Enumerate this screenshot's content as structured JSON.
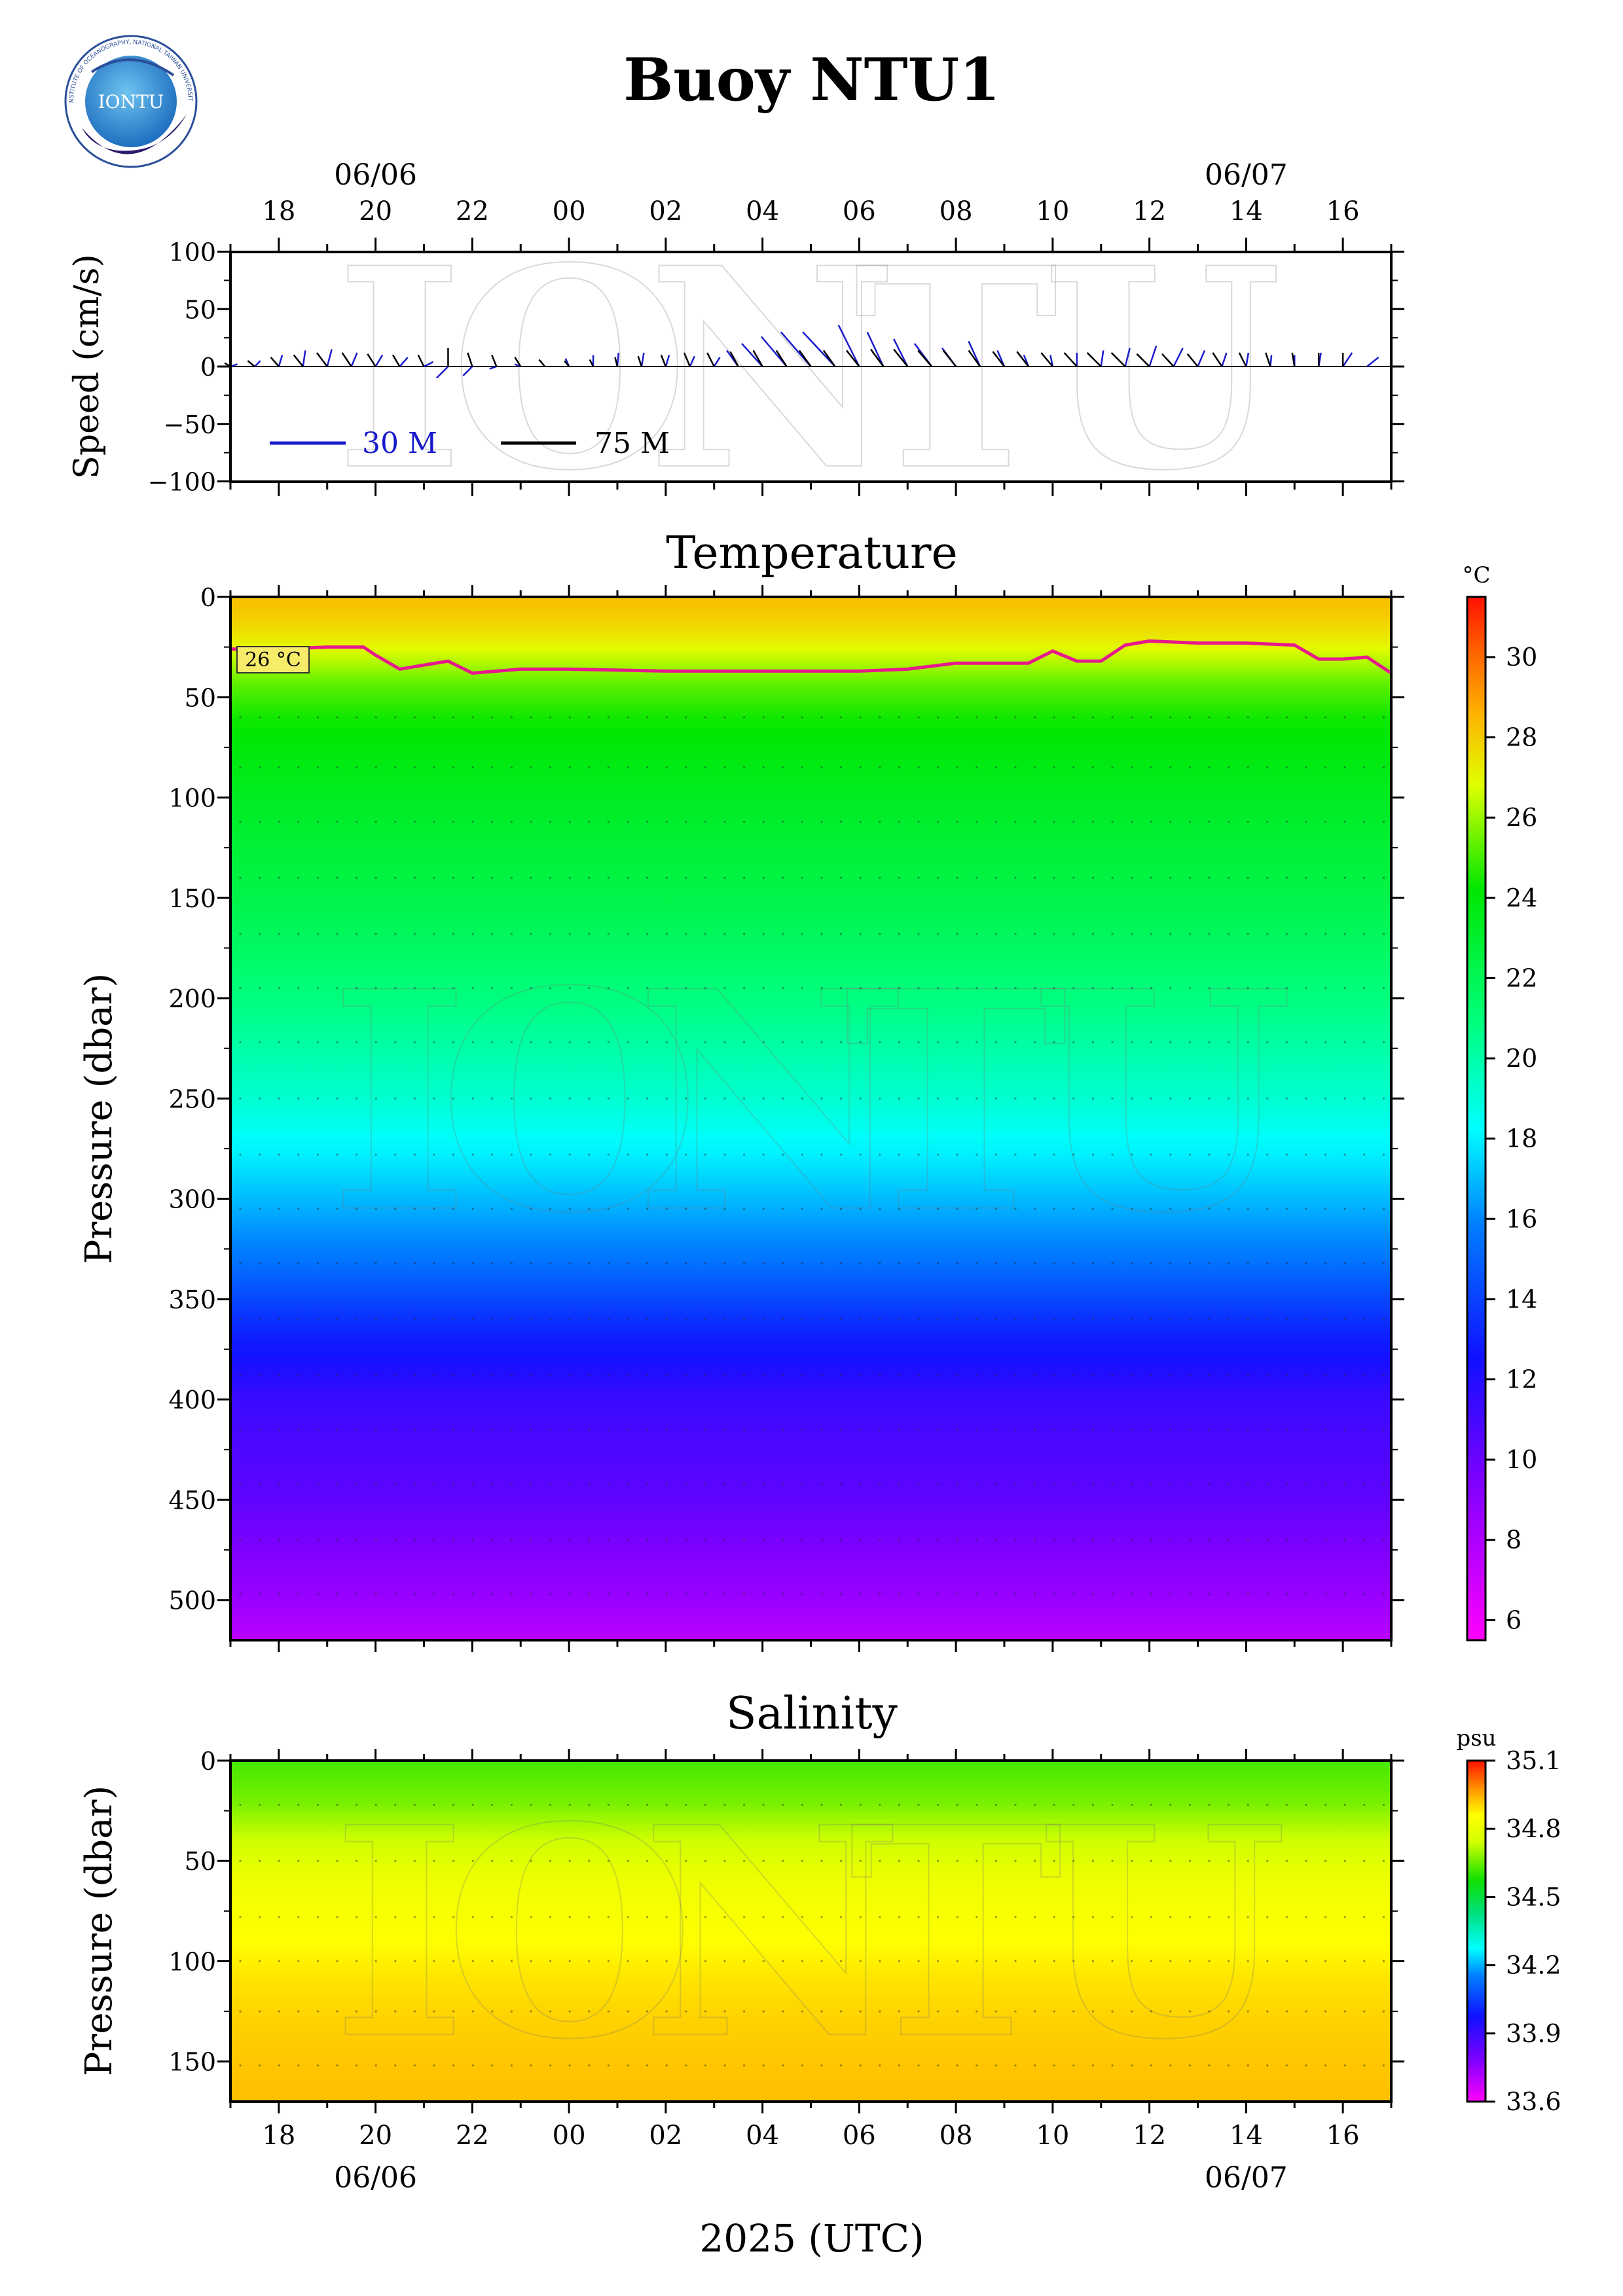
{
  "title": "Buoy NTU1",
  "logo_text": "IONTU",
  "logo_ring_text": "INSTITUTE OF OCEANOGRAPHY, NATIONAL TAIWAN UNIVERSITY",
  "watermark": "IONTU",
  "xlabel": "2025 (UTC)",
  "time_axis": {
    "hour_ticks": [
      "18",
      "20",
      "22",
      "00",
      "02",
      "04",
      "06",
      "08",
      "10",
      "12",
      "14",
      "16"
    ],
    "date_labels": [
      "06/06",
      "06/07"
    ]
  },
  "colors": {
    "series_30m": "#1a1acc",
    "series_75m": "#000000",
    "isotherm": "#e6198c"
  },
  "chart_data": [
    {
      "type": "line",
      "title": "",
      "ylabel": "Speed (cm/s)",
      "ylim": [
        -100,
        100
      ],
      "yticks": [
        "100",
        "50",
        "0",
        "−50",
        "−100"
      ],
      "legend": {
        "placement": "bottom-left",
        "entries": [
          "30 M",
          "75 M"
        ]
      },
      "series": [
        {
          "name": "30 M",
          "color": "#1a1acc",
          "x": [
            "06/06 17:00",
            "06/06 17:30",
            "06/06 18:00",
            "06/06 18:30",
            "06/06 19:00",
            "06/06 19:30",
            "06/06 20:00",
            "06/06 20:30",
            "06/06 21:00",
            "06/06 21:30",
            "06/06 22:00",
            "06/06 22:30",
            "06/06 23:00",
            "06/06 23:30",
            "06/07 00:00",
            "06/07 00:30",
            "06/07 01:00",
            "06/07 01:30",
            "06/07 02:00",
            "06/07 02:30",
            "06/07 03:00",
            "06/07 03:30",
            "06/07 04:00",
            "06/07 04:30",
            "06/07 05:00",
            "06/07 05:30",
            "06/07 06:00",
            "06/07 06:30",
            "06/07 07:00",
            "06/07 07:30",
            "06/07 08:00",
            "06/07 08:30",
            "06/07 09:00",
            "06/07 09:30",
            "06/07 10:00",
            "06/07 10:30",
            "06/07 11:00",
            "06/07 11:30",
            "06/07 12:00",
            "06/07 12:30",
            "06/07 13:00",
            "06/07 13:30",
            "06/07 14:00",
            "06/07 14:30",
            "06/07 15:00",
            "06/07 15:30",
            "06/07 16:00",
            "06/07 16:30"
          ],
          "u": [
            6,
            5,
            3,
            2,
            4,
            5,
            6,
            7,
            8,
            -10,
            -8,
            -6,
            -5,
            -4,
            -3,
            0,
            1,
            2,
            3,
            4,
            5,
            -10,
            -18,
            -22,
            -26,
            -28,
            -18,
            -14,
            -12,
            -15,
            -12,
            -10,
            -6,
            -4,
            -2,
            0,
            2,
            4,
            6,
            8,
            6,
            4,
            2,
            1,
            0,
            2,
            8,
            10
          ],
          "v": [
            2,
            5,
            10,
            14,
            15,
            12,
            10,
            8,
            4,
            -10,
            -8,
            -2,
            2,
            5,
            7,
            10,
            12,
            12,
            10,
            9,
            8,
            14,
            20,
            26,
            30,
            30,
            36,
            30,
            24,
            20,
            16,
            22,
            14,
            10,
            10,
            12,
            14,
            16,
            18,
            16,
            14,
            12,
            12,
            10,
            10,
            12,
            12,
            8
          ]
        },
        {
          "name": "75 M",
          "color": "#000000",
          "x": [
            "06/06 17:00",
            "06/06 17:30",
            "06/06 18:00",
            "06/06 18:30",
            "06/06 19:00",
            "06/06 19:30",
            "06/06 20:00",
            "06/06 20:30",
            "06/06 21:00",
            "06/06 21:30",
            "06/06 22:00",
            "06/06 22:30",
            "06/06 23:00",
            "06/06 23:30",
            "06/07 00:00",
            "06/07 00:30",
            "06/07 01:00",
            "06/07 01:30",
            "06/07 02:00",
            "06/07 02:30",
            "06/07 03:00",
            "06/07 03:30",
            "06/07 04:00",
            "06/07 04:30",
            "06/07 05:00",
            "06/07 05:30",
            "06/07 06:00",
            "06/07 06:30",
            "06/07 07:00",
            "06/07 07:30",
            "06/07 08:00",
            "06/07 08:30",
            "06/07 09:00",
            "06/07 09:30",
            "06/07 10:00",
            "06/07 10:30",
            "06/07 11:00",
            "06/07 11:30",
            "06/07 12:00",
            "06/07 12:30",
            "06/07 13:00",
            "06/07 13:30",
            "06/07 14:00",
            "06/07 14:30",
            "06/07 15:00",
            "06/07 15:30",
            "06/07 16:00",
            "06/07 16:30"
          ],
          "u": [
            -5,
            -6,
            -7,
            -8,
            -9,
            -8,
            -7,
            -6,
            -5,
            0,
            -4,
            -4,
            -5,
            -5,
            -4,
            -3,
            -2,
            -3,
            -4,
            -5,
            -6,
            -7,
            -8,
            -9,
            -10,
            -10,
            -11,
            -11,
            -12,
            -12,
            -11,
            -10,
            -10,
            -10,
            -10,
            -11,
            -12,
            -12,
            -11,
            -10,
            -9,
            -8,
            -6,
            -4,
            -2,
            0,
            0,
            0
          ],
          "v": [
            3,
            5,
            8,
            10,
            12,
            12,
            11,
            10,
            10,
            16,
            12,
            10,
            8,
            6,
            5,
            6,
            8,
            9,
            10,
            12,
            12,
            13,
            14,
            14,
            14,
            14,
            14,
            15,
            15,
            14,
            14,
            14,
            13,
            13,
            12,
            12,
            12,
            12,
            11,
            11,
            11,
            12,
            12,
            12,
            12,
            12,
            12,
            0
          ]
        }
      ]
    },
    {
      "type": "heatmap",
      "title": "Temperature",
      "ylabel": "Pressure (dbar)",
      "ylim": [
        0,
        520
      ],
      "yticks": [
        "0",
        "50",
        "100",
        "150",
        "200",
        "250",
        "300",
        "350",
        "400",
        "450",
        "500"
      ],
      "colorbar": {
        "unit": "°C",
        "range": [
          5.5,
          31.5
        ],
        "ticks": [
          "30",
          "28",
          "26",
          "24",
          "22",
          "20",
          "18",
          "16",
          "14",
          "12",
          "10",
          "8",
          "6"
        ]
      },
      "profile": {
        "depth": [
          0,
          10,
          20,
          30,
          40,
          60,
          100,
          150,
          200,
          250,
          300,
          330,
          360,
          400,
          450,
          500,
          520
        ],
        "temperature": [
          28.3,
          28.0,
          27.4,
          26.6,
          25.5,
          24.4,
          23.3,
          22.3,
          20.9,
          19.2,
          17.0,
          15.6,
          13.5,
          11.3,
          10.3,
          8.6,
          7.6
        ]
      },
      "isotherm": {
        "label": "26 °C",
        "color": "#e6198c",
        "x": [
          "06/06 17:00",
          "06/06 18:00",
          "06/06 19:00",
          "06/06 19:45",
          "06/06 20:00",
          "06/06 20:30",
          "06/06 21:00",
          "06/06 21:30",
          "06/06 22:00",
          "06/06 23:00",
          "06/07 00:00",
          "06/07 02:00",
          "06/07 04:00",
          "06/07 06:00",
          "06/07 07:00",
          "06/07 08:00",
          "06/07 09:00",
          "06/07 09:30",
          "06/07 10:00",
          "06/07 10:30",
          "06/07 11:00",
          "06/07 11:30",
          "06/07 12:00",
          "06/07 13:00",
          "06/07 14:00",
          "06/07 15:00",
          "06/07 15:30",
          "06/07 16:00",
          "06/07 16:30",
          "06/07 17:00"
        ],
        "pressure": [
          26,
          26,
          25,
          25,
          29,
          36,
          34,
          32,
          38,
          36,
          36,
          37,
          37,
          37,
          36,
          33,
          33,
          33,
          27,
          32,
          32,
          24,
          22,
          23,
          23,
          24,
          31,
          31,
          30,
          38
        ]
      }
    },
    {
      "type": "heatmap",
      "title": "Salinity",
      "ylabel": "Pressure (dbar)",
      "ylim": [
        0,
        170
      ],
      "yticks": [
        "0",
        "50",
        "100",
        "150"
      ],
      "colorbar": {
        "unit": "psu",
        "range": [
          33.6,
          35.1
        ],
        "ticks": [
          "35.1",
          "34.8",
          "34.5",
          "34.2",
          "33.9",
          "33.6"
        ]
      },
      "profile": {
        "depth": [
          0,
          20,
          40,
          60,
          90,
          110,
          130,
          170
        ],
        "salinity": [
          34.62,
          34.66,
          34.74,
          34.82,
          34.86,
          34.89,
          34.91,
          34.93
        ]
      }
    }
  ]
}
